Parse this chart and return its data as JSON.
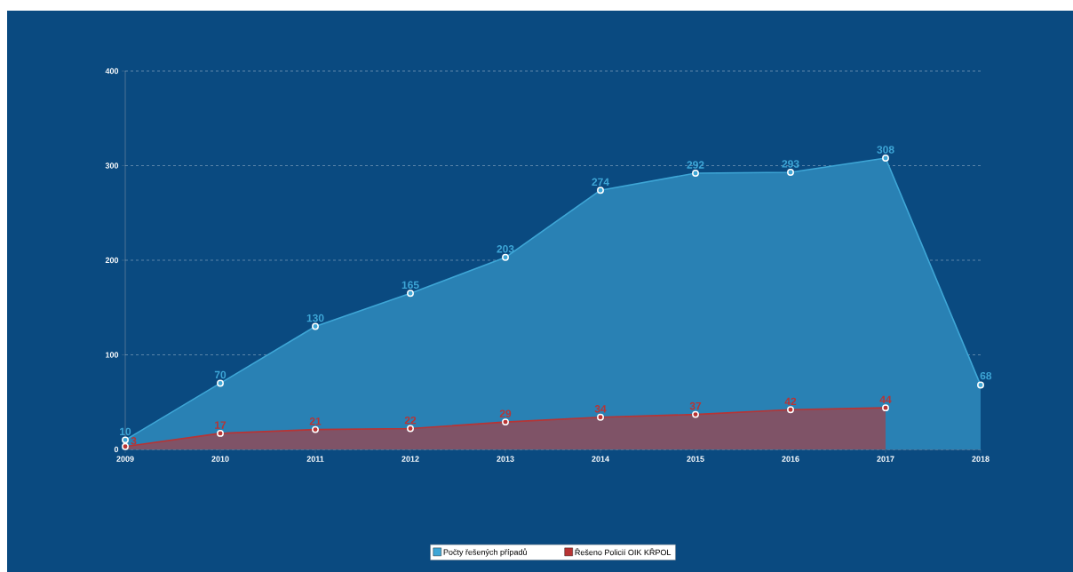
{
  "chart_data": {
    "type": "area",
    "x": [
      2009,
      2010,
      2011,
      2012,
      2013,
      2014,
      2015,
      2016,
      2017,
      2018
    ],
    "series": [
      {
        "name": "Počty řešených případů",
        "color": "#3ea6d6",
        "values": [
          10,
          70,
          130,
          165,
          203,
          274,
          292,
          293,
          308,
          68
        ]
      },
      {
        "name": "Řešeno Policií OIK KŘPOL",
        "color": "#b83434",
        "x": [
          2009,
          2010,
          2011,
          2012,
          2013,
          2014,
          2015,
          2016,
          2017
        ],
        "values": [
          3,
          17,
          21,
          22,
          29,
          34,
          37,
          42,
          44
        ]
      }
    ],
    "xlim": [
      2009,
      2018
    ],
    "ylim": [
      0,
      400
    ],
    "xticks": [
      2009,
      2010,
      2011,
      2012,
      2013,
      2014,
      2015,
      2016,
      2017,
      2018
    ],
    "yticks": [
      0,
      100,
      200,
      300,
      400
    ],
    "grid": "y",
    "legend": "bottom",
    "marker": "circle",
    "line_style": "solid",
    "data_labels": true
  }
}
